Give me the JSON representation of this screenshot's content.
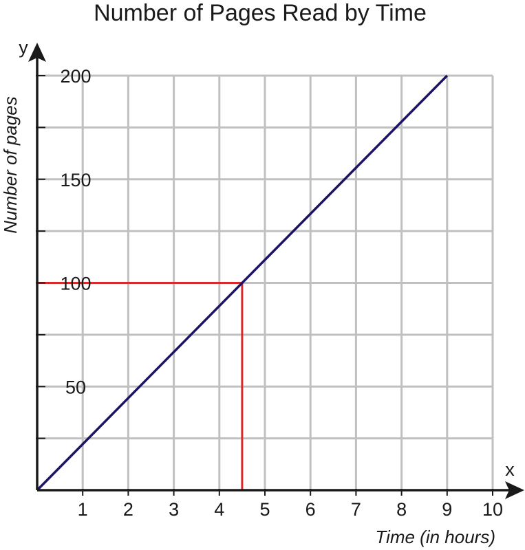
{
  "chart_data": {
    "type": "line",
    "title": "Number of Pages Read by Time",
    "xlabel": "Time (in hours)",
    "ylabel": "Number of pages",
    "x_axis_letter": "x",
    "y_axis_letter": "y",
    "xlim": [
      0,
      10
    ],
    "ylim": [
      0,
      200
    ],
    "grid": true,
    "x_ticks": [
      "1",
      "2",
      "3",
      "4",
      "5",
      "6",
      "7",
      "8",
      "9",
      "10"
    ],
    "y_ticks": [
      {
        "value": 50,
        "label": "50"
      },
      {
        "value": 100,
        "label": "100"
      },
      {
        "value": 150,
        "label": "150"
      },
      {
        "value": 200,
        "label": "200"
      }
    ],
    "series": [
      {
        "color": "#1b1464",
        "x": [
          0,
          9
        ],
        "y": [
          0,
          200
        ]
      }
    ],
    "highlight": {
      "x": 4.5,
      "y": 100,
      "color": "#d62b2b"
    },
    "colors": {
      "grid": "#c0c0c0",
      "axis": "#1a1a1a"
    }
  }
}
